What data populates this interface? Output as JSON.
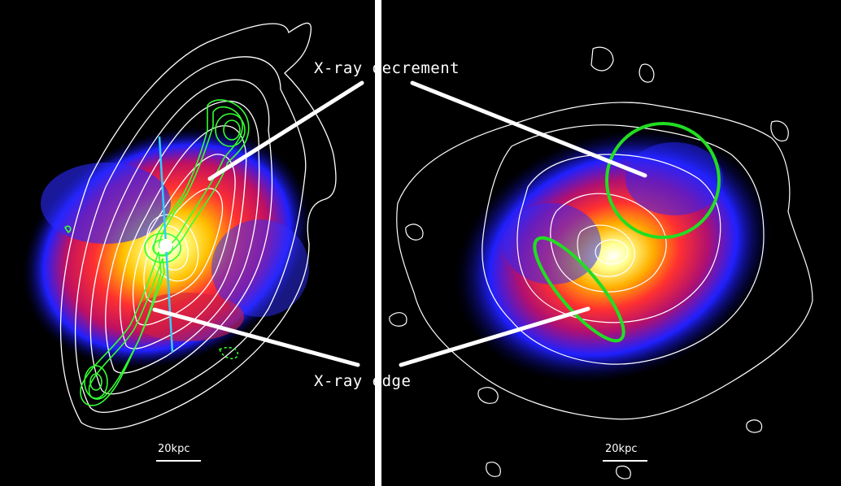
{
  "annotations": {
    "decrement": "X-ray decrement",
    "edge": "X-ray edge"
  },
  "scale_bars": {
    "left": "20kpc",
    "right": "20kpc"
  },
  "colors": {
    "contour_white": "#ffffff",
    "radio_green": "#33ff33",
    "jet_axis_cyan": "#33ccff",
    "region_green": "#22dd22"
  }
}
